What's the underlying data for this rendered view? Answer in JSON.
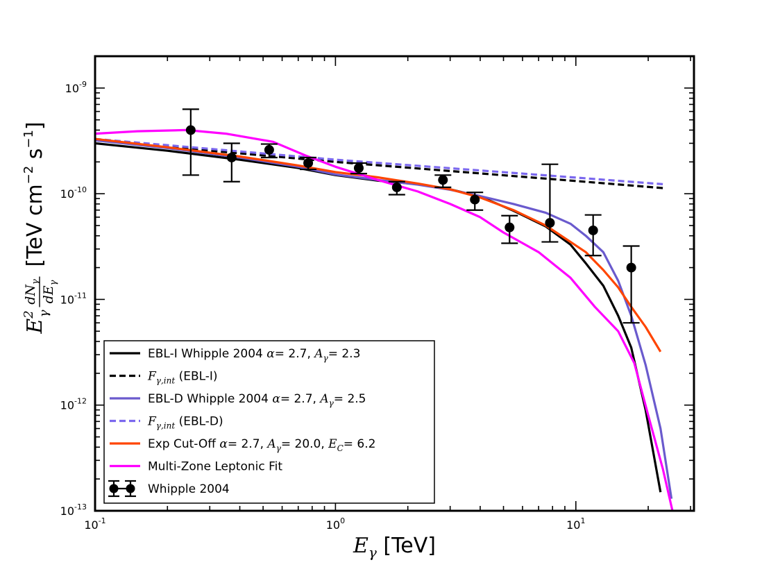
{
  "chart_data": {
    "type": "line",
    "xscale": "log",
    "yscale": "log",
    "xlim": [
      0.1,
      31
    ],
    "ylim": [
      1e-13,
      2e-09
    ],
    "xlabel_var": "E",
    "xlabel_sub": "γ",
    "xlabel_unit": "[TeV]",
    "ylabel_unit": "[TeV cm",
    "ylabel_exp1": "−2",
    "ylabel_s": " s",
    "ylabel_exp2": "−1",
    "ylabel_close": "]",
    "ylabel_var": "E",
    "ylabel_sub": "γ",
    "ylabel_sup": "2",
    "ylabel_frac_num": "dN",
    "ylabel_frac_den": "dE",
    "x_ticks": [
      {
        "value": 0.1,
        "base": "10",
        "exp": "-1"
      },
      {
        "value": 1,
        "base": "10",
        "exp": "0"
      },
      {
        "value": 10,
        "base": "10",
        "exp": "1"
      }
    ],
    "y_ticks": [
      {
        "value": 1e-13,
        "base": "10",
        "exp": "-13"
      },
      {
        "value": 1e-12,
        "base": "10",
        "exp": "-12"
      },
      {
        "value": 1e-11,
        "base": "10",
        "exp": "-11"
      },
      {
        "value": 1e-10,
        "base": "10",
        "exp": "-10"
      },
      {
        "value": 1e-09,
        "base": "10",
        "exp": "-9"
      }
    ],
    "series": [
      {
        "name": "EBL-I Whipple 2004",
        "color": "#000000",
        "dash": "solid",
        "x": [
          0.1,
          0.2,
          0.4,
          0.7,
          1.0,
          1.5,
          2.2,
          3.0,
          4.0,
          5.5,
          7.5,
          9.5,
          11.0,
          13.0,
          15.0,
          17.0,
          19.5,
          22.5
        ],
        "y": [
          3e-10,
          2.55e-10,
          2.1e-10,
          1.75e-10,
          1.5e-10,
          1.33e-10,
          1.23e-10,
          1.1e-10,
          9.4e-11,
          6.9e-11,
          4.9e-11,
          3.3e-11,
          2.2e-11,
          1.35e-11,
          7e-12,
          3.5e-12,
          9e-13,
          1.5e-13
        ]
      },
      {
        "name": "F_γ,int (EBL-I)",
        "color": "#000000",
        "dash": "dashed",
        "x": [
          0.1,
          1.0,
          10.0,
          23.0
        ],
        "y": [
          3.2e-10,
          2e-10,
          1.32e-10,
          1.13e-10
        ]
      },
      {
        "name": "EBL-D Whipple 2004",
        "color": "#6a5acd",
        "dash": "solid",
        "x": [
          0.1,
          0.2,
          0.4,
          0.7,
          1.0,
          1.5,
          2.2,
          3.0,
          4.0,
          5.5,
          7.5,
          9.5,
          11.0,
          13.0,
          15.0,
          17.0,
          19.5,
          22.5,
          25.0
        ],
        "y": [
          3.2e-10,
          2.7e-10,
          2.2e-10,
          1.8e-10,
          1.52e-10,
          1.35e-10,
          1.22e-10,
          1.09e-10,
          9.5e-11,
          8e-11,
          6.6e-11,
          5.2e-11,
          4e-11,
          2.8e-11,
          1.5e-11,
          7e-12,
          2.4e-12,
          6e-13,
          1.3e-13
        ]
      },
      {
        "name": "F_γ,int (EBL-D)",
        "color": "#7b68ee",
        "dash": "dashed",
        "x": [
          0.1,
          1.0,
          10.0,
          23.0
        ],
        "y": [
          3.3e-10,
          2.1e-10,
          1.42e-10,
          1.23e-10
        ]
      },
      {
        "name": "Exp Cut-Off",
        "color": "#ff4500",
        "dash": "solid",
        "x": [
          0.1,
          0.2,
          0.4,
          0.7,
          1.0,
          1.5,
          2.2,
          3.0,
          4.0,
          5.5,
          7.5,
          9.5,
          11.0,
          13.0,
          15.0,
          17.0,
          19.5,
          22.5
        ],
        "y": [
          3.3e-10,
          2.75e-10,
          2.25e-10,
          1.85e-10,
          1.6e-10,
          1.43e-10,
          1.25e-10,
          1.1e-10,
          9.2e-11,
          7e-11,
          5e-11,
          3.5e-11,
          2.8e-11,
          1.9e-11,
          1.3e-11,
          8.5e-12,
          5.5e-12,
          3.2e-12
        ]
      },
      {
        "name": "Multi-Zone Leptonic Fit",
        "color": "#ff00ff",
        "dash": "solid",
        "x": [
          0.1,
          0.15,
          0.24,
          0.35,
          0.55,
          0.75,
          1.0,
          1.5,
          2.2,
          3.0,
          4.0,
          5.0,
          7.0,
          9.5,
          12.0,
          15.0,
          17.5,
          20.0,
          23.0,
          25.5
        ],
        "y": [
          3.7e-10,
          3.9e-10,
          4e-10,
          3.7e-10,
          3.1e-10,
          2.3e-10,
          1.8e-10,
          1.35e-10,
          1.05e-10,
          8e-11,
          6e-11,
          4.3e-11,
          2.8e-11,
          1.6e-11,
          8.5e-12,
          5e-12,
          2.5e-12,
          8e-13,
          2.5e-13,
          9e-14
        ]
      }
    ],
    "points": {
      "name": "Whipple 2004",
      "color": "#000000",
      "x": [
        0.25,
        0.37,
        0.53,
        0.77,
        1.25,
        1.8,
        2.8,
        3.8,
        5.3,
        7.8,
        11.8,
        17.0
      ],
      "y": [
        4e-10,
        2.2e-10,
        2.6e-10,
        1.95e-10,
        1.75e-10,
        1.15e-10,
        1.35e-10,
        8.8e-11,
        4.8e-11,
        5.3e-11,
        4.5e-11,
        2e-11
      ],
      "ylow": [
        1.5e-10,
        1.3e-10,
        2.2e-10,
        1.7e-10,
        1.55e-10,
        9.8e-11,
        1.15e-10,
        7e-11,
        3.4e-11,
        3.5e-11,
        2.6e-11,
        6e-12
      ],
      "yhigh": [
        6.3e-10,
        3e-10,
        2.95e-10,
        2.2e-10,
        1.95e-10,
        1.3e-10,
        1.5e-10,
        1.03e-10,
        6.2e-11,
        1.9e-10,
        6.3e-11,
        3.2e-11
      ]
    },
    "legend": {
      "position": "lower-left",
      "entries": [
        {
          "style": "solid",
          "color": "#000000",
          "text": "EBL-I Whipple 2004 ",
          "math": "α",
          "text2": "= 2.7,  ",
          "math2": "A",
          "sub2": "γ",
          "text3": "= 2.3"
        },
        {
          "style": "dashed",
          "color": "#000000",
          "math": "F",
          "sub": "γ,int",
          "text": " (EBL-I)"
        },
        {
          "style": "solid",
          "color": "#6a5acd",
          "text": "EBL-D Whipple 2004 ",
          "math": "α",
          "text2": "= 2.7,  ",
          "math2": "A",
          "sub2": "γ",
          "text3": "= 2.5"
        },
        {
          "style": "dashed",
          "color": "#7b68ee",
          "math": "F",
          "sub": "γ,int",
          "text": " (EBL-D)"
        },
        {
          "style": "solid",
          "color": "#ff4500",
          "text": "Exp Cut-Off ",
          "math": "α",
          "text2": "= 2.7,  ",
          "math2": "A",
          "sub2": "γ",
          "text3": "= 20.0,  ",
          "math3": "E",
          "sub3": "C",
          "text4": "= 6.2"
        },
        {
          "style": "solid",
          "color": "#ff00ff",
          "text": "Multi-Zone Leptonic Fit"
        },
        {
          "style": "points",
          "color": "#000000",
          "text": "Whipple 2004"
        }
      ]
    }
  }
}
